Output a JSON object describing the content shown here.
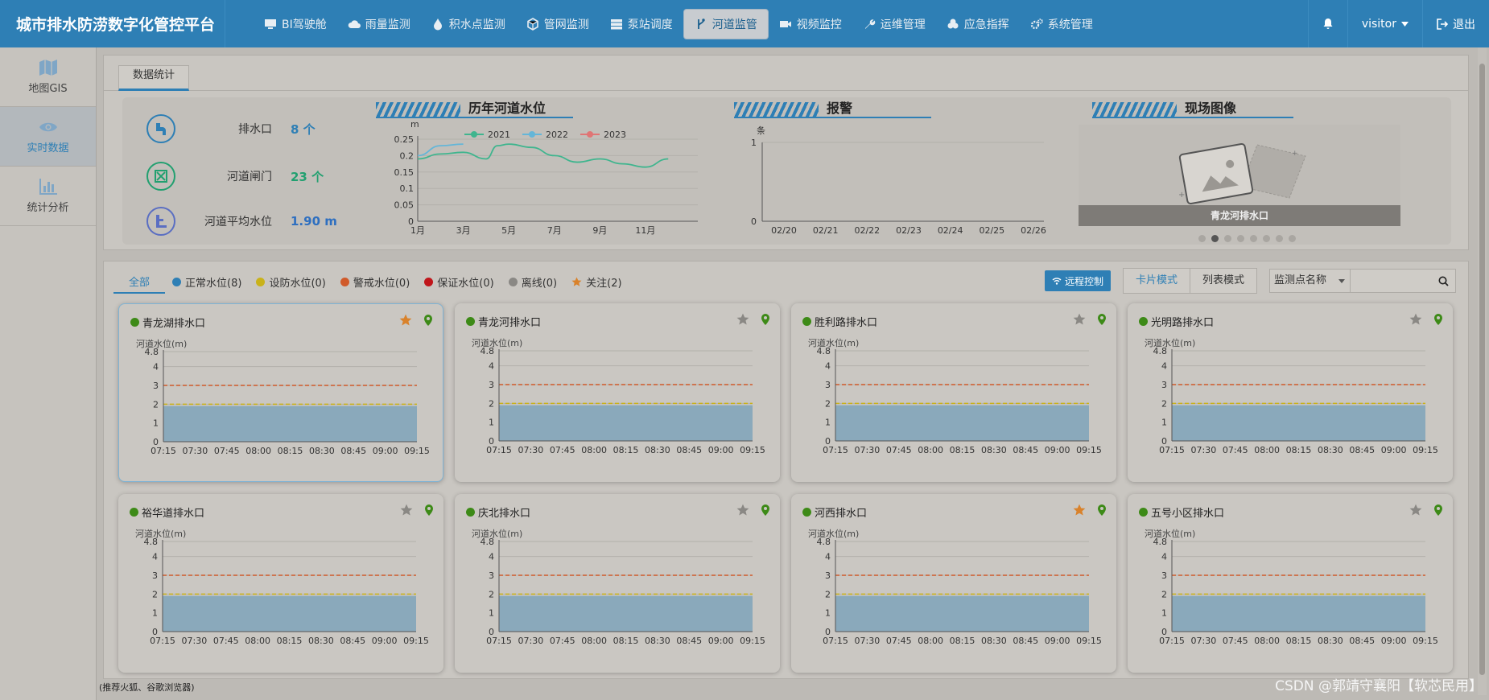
{
  "app_title": "城市排水防涝数字化管控平台",
  "nav": [
    {
      "label": "BI驾驶舱",
      "icon": "monitor-icon"
    },
    {
      "label": "雨量监测",
      "icon": "cloud-icon"
    },
    {
      "label": "积水点监测",
      "icon": "droplet-icon"
    },
    {
      "label": "管网监测",
      "icon": "cube-icon"
    },
    {
      "label": "泵站调度",
      "icon": "server-icon"
    },
    {
      "label": "河道监管",
      "icon": "branch-icon",
      "active": true
    },
    {
      "label": "视频监控",
      "icon": "video-icon"
    },
    {
      "label": "运维管理",
      "icon": "wrench-icon"
    },
    {
      "label": "应急指挥",
      "icon": "cubes-icon"
    },
    {
      "label": "系统管理",
      "icon": "gears-icon"
    }
  ],
  "user": {
    "name": "visitor",
    "logout": "退出"
  },
  "sidebar": [
    {
      "label": "地图GIS",
      "icon": "map-icon"
    },
    {
      "label": "实时数据",
      "icon": "eye-icon",
      "active": true
    },
    {
      "label": "统计分析",
      "icon": "bar-chart-icon"
    }
  ],
  "stats": {
    "tab": "数据统计",
    "kpis": [
      {
        "label": "排水口",
        "value": "8 个",
        "color": "#2e7fb5"
      },
      {
        "label": "河道闸门",
        "value": "23 个",
        "color": "#22a070"
      },
      {
        "label": "河道平均水位",
        "value": "1.90 m",
        "color": "#2e6fc0"
      }
    ],
    "river_title": "历年河道水位",
    "alarm_title": "报警",
    "photo_title": "现场图像",
    "photo_caption": "青龙河排水口"
  },
  "chart_data": [
    {
      "type": "line",
      "title": "历年河道水位",
      "ylabel": "m",
      "ylim": [
        0,
        0.25
      ],
      "yticks": [
        "0",
        "0.05",
        "0.1",
        "0.15",
        "0.2",
        "0.25"
      ],
      "xticks": [
        "1月",
        "3月",
        "5月",
        "7月",
        "9月",
        "11月"
      ],
      "legend": "top",
      "series": [
        {
          "name": "2021",
          "color": "#3fb58e",
          "x": [
            1,
            2,
            3,
            4,
            4.5,
            5,
            6,
            7,
            8,
            9,
            10,
            11,
            12
          ],
          "values": [
            0.19,
            0.205,
            0.21,
            0.19,
            0.23,
            0.235,
            0.225,
            0.2,
            0.18,
            0.19,
            0.175,
            0.165,
            0.19
          ]
        },
        {
          "name": "2022",
          "color": "#64b6d8",
          "x": [
            1,
            2,
            3
          ],
          "values": [
            0.2,
            0.23,
            0.235
          ]
        },
        {
          "name": "2023",
          "color": "#e07575",
          "x": [],
          "values": []
        }
      ]
    },
    {
      "type": "line",
      "title": "报警",
      "ylabel": "条",
      "ylim": [
        0,
        1
      ],
      "yticks": [
        "0",
        "1"
      ],
      "categories": [
        "02/20",
        "02/21",
        "02/22",
        "02/23",
        "02/24",
        "02/25",
        "02/26"
      ],
      "series": []
    },
    {
      "type": "area",
      "ylabel": "河道水位(m)",
      "ylim": [
        0,
        4.8
      ],
      "yticks": [
        "0",
        "1",
        "2",
        "3",
        "4",
        "4.8"
      ],
      "categories": [
        "07:15",
        "07:30",
        "07:45",
        "08:00",
        "08:15",
        "08:30",
        "08:45",
        "09:00",
        "09:15"
      ],
      "series": [
        {
          "values": [
            1.9,
            1.9,
            1.9,
            1.9,
            1.9,
            1.9,
            1.9,
            1.9,
            1.9
          ]
        }
      ],
      "lines": [
        {
          "value": 3,
          "color": "#d05a2a"
        },
        {
          "value": 2,
          "color": "#c9b21a"
        }
      ]
    }
  ],
  "filters": [
    {
      "label": "全部",
      "active": true
    },
    {
      "label": "正常水位(8)",
      "color": "#2e7fb5"
    },
    {
      "label": "设防水位(0)",
      "color": "#c9b21a"
    },
    {
      "label": "警戒水位(0)",
      "color": "#d05a2a"
    },
    {
      "label": "保证水位(0)",
      "color": "#c0161b"
    },
    {
      "label": "离线(0)",
      "color": "#8a8884"
    },
    {
      "label": "关注(2)",
      "color": "#d9822b",
      "star": true
    }
  ],
  "toolbar": {
    "remote": "远程控制",
    "card_mode": "卡片模式",
    "list_mode": "列表模式",
    "search_select": "监测点名称"
  },
  "cards": [
    {
      "name": "青龙湖排水口",
      "starred": true
    },
    {
      "name": "青龙河排水口",
      "starred": false
    },
    {
      "name": "胜利路排水口",
      "starred": false
    },
    {
      "name": "光明路排水口",
      "starred": false
    },
    {
      "name": "裕华道排水口",
      "starred": false
    },
    {
      "name": "庆北排水口",
      "starred": false
    },
    {
      "name": "河西排水口",
      "starred": true
    },
    {
      "name": "五号小区排水口",
      "starred": false
    }
  ],
  "footer_note": "(推荐火狐、谷歌浏览器)",
  "watermark": "CSDN @郭靖守襄阳【软芯民用】"
}
